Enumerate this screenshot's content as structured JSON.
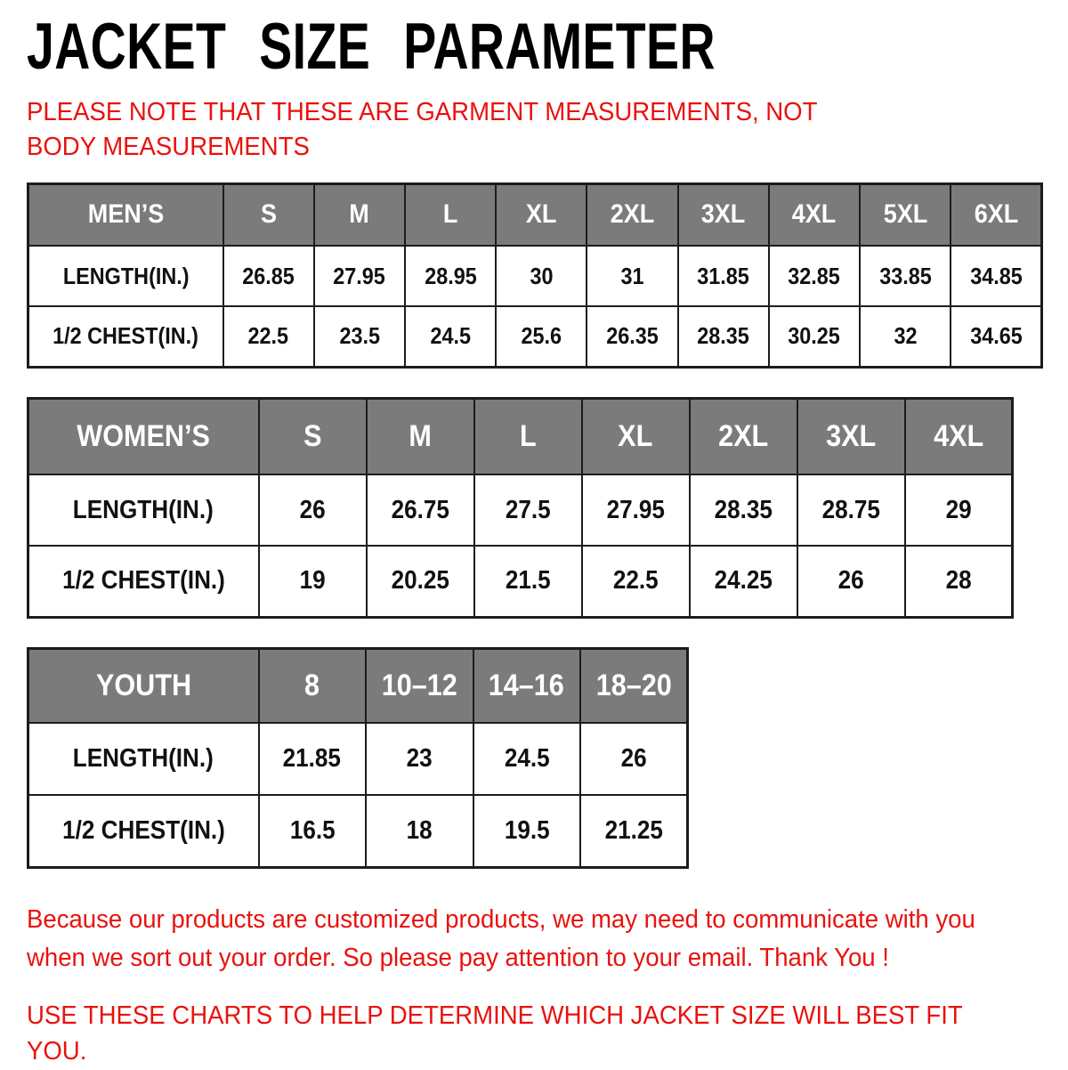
{
  "page": {
    "title": "JACKET SIZE PARAMETER",
    "note": "PLEASE NOTE THAT THESE ARE GARMENT MEASUREMENTS, NOT BODY MEASUREMENTS",
    "footer_line1": "Because our products are customized products, we may need to communicate with you when we sort out your order. So please pay attention to your email. Thank You !",
    "footer_line2": "USE THESE CHARTS TO HELP DETERMINE WHICH JACKET SIZE WILL BEST FIT YOU."
  },
  "colors": {
    "accent_red": "#e8120e",
    "header_gray": "#7b7b7b",
    "border_black": "#1c1c1c",
    "header_text": "#ffffff"
  },
  "tables": [
    {
      "id": "mens",
      "header": [
        "MEN’S",
        "S",
        "M",
        "L",
        "XL",
        "2XL",
        "3XL",
        "4XL",
        "5XL",
        "6XL"
      ],
      "rows": [
        {
          "label": "LENGTH(IN.)",
          "values": [
            "26.85",
            "27.95",
            "28.95",
            "30",
            "31",
            "31.85",
            "32.85",
            "33.85",
            "34.85"
          ]
        },
        {
          "label": "1/2 CHEST(IN.)",
          "values": [
            "22.5",
            "23.5",
            "24.5",
            "25.6",
            "26.35",
            "28.35",
            "30.25",
            "32",
            "34.65"
          ]
        }
      ]
    },
    {
      "id": "womens",
      "header": [
        "WOMEN’S",
        "S",
        "M",
        "L",
        "XL",
        "2XL",
        "3XL",
        "4XL"
      ],
      "rows": [
        {
          "label": "LENGTH(IN.)",
          "values": [
            "26",
            "26.75",
            "27.5",
            "27.95",
            "28.35",
            "28.75",
            "29"
          ]
        },
        {
          "label": "1/2 CHEST(IN.)",
          "values": [
            "19",
            "20.25",
            "21.5",
            "22.5",
            "24.25",
            "26",
            "28"
          ]
        }
      ]
    },
    {
      "id": "youth",
      "header": [
        "YOUTH",
        "8",
        "10–12",
        "14–16",
        "18–20"
      ],
      "rows": [
        {
          "label": "LENGTH(IN.)",
          "values": [
            "21.85",
            "23",
            "24.5",
            "26"
          ]
        },
        {
          "label": "1/2 CHEST(IN.)",
          "values": [
            "16.5",
            "18",
            "19.5",
            "21.25"
          ]
        }
      ]
    }
  ]
}
